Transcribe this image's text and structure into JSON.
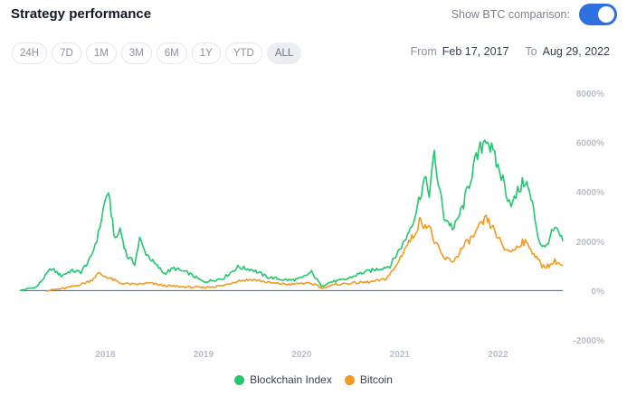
{
  "header": {
    "title": "Strategy performance",
    "comparison_label": "Show BTC comparison:",
    "comparison_enabled": true
  },
  "ranges": [
    {
      "label": "24H",
      "active": false
    },
    {
      "label": "7D",
      "active": false
    },
    {
      "label": "1M",
      "active": false
    },
    {
      "label": "3M",
      "active": false
    },
    {
      "label": "6M",
      "active": false
    },
    {
      "label": "1Y",
      "active": false
    },
    {
      "label": "YTD",
      "active": false
    },
    {
      "label": "ALL",
      "active": true
    }
  ],
  "date_range": {
    "from_label": "From",
    "from_value": "Feb 17, 2017",
    "to_label": "To",
    "to_value": "Aug 29, 2022"
  },
  "colors": {
    "index": "#22c76e",
    "bitcoin": "#f39a1e",
    "zero_line": "#2e6aa6",
    "toggle": "#2f6fdf"
  },
  "chart_data": {
    "type": "line",
    "title": "Strategy performance",
    "xlabel": "",
    "ylabel": "",
    "xlim": [
      2017.13,
      2022.66
    ],
    "ylim": [
      -2000,
      8000
    ],
    "y_ticks": [
      {
        "value": 8000,
        "label": "8000%"
      },
      {
        "value": 6000,
        "label": "6000%"
      },
      {
        "value": 4000,
        "label": "4000%"
      },
      {
        "value": 2000,
        "label": "2000%"
      },
      {
        "value": 0,
        "label": "0%"
      },
      {
        "value": -2000,
        "label": "-2000%"
      }
    ],
    "x_ticks": [
      {
        "value": 2018.0,
        "label": "2018"
      },
      {
        "value": 2019.0,
        "label": "2019"
      },
      {
        "value": 2020.0,
        "label": "2020"
      },
      {
        "value": 2021.0,
        "label": "2021"
      },
      {
        "value": 2022.0,
        "label": "2022"
      }
    ],
    "legend_position": "bottom",
    "series": [
      {
        "name": "Blockchain Index",
        "points": [
          [
            2017.13,
            0
          ],
          [
            2017.3,
            150
          ],
          [
            2017.45,
            900
          ],
          [
            2017.55,
            600
          ],
          [
            2017.65,
            800
          ],
          [
            2017.75,
            750
          ],
          [
            2017.85,
            1300
          ],
          [
            2017.93,
            2300
          ],
          [
            2017.98,
            3300
          ],
          [
            2018.02,
            4000
          ],
          [
            2018.06,
            3200
          ],
          [
            2018.1,
            2000
          ],
          [
            2018.15,
            2500
          ],
          [
            2018.22,
            1400
          ],
          [
            2018.3,
            1100
          ],
          [
            2018.35,
            2100
          ],
          [
            2018.4,
            1600
          ],
          [
            2018.5,
            1100
          ],
          [
            2018.6,
            700
          ],
          [
            2018.7,
            900
          ],
          [
            2018.85,
            700
          ],
          [
            2019.0,
            350
          ],
          [
            2019.2,
            500
          ],
          [
            2019.35,
            950
          ],
          [
            2019.5,
            850
          ],
          [
            2019.65,
            550
          ],
          [
            2019.8,
            450
          ],
          [
            2019.9,
            420
          ],
          [
            2020.0,
            500
          ],
          [
            2020.1,
            750
          ],
          [
            2020.2,
            200
          ],
          [
            2020.3,
            350
          ],
          [
            2020.45,
            450
          ],
          [
            2020.6,
            700
          ],
          [
            2020.75,
            850
          ],
          [
            2020.9,
            1000
          ],
          [
            2021.0,
            1700
          ],
          [
            2021.05,
            2000
          ],
          [
            2021.15,
            3000
          ],
          [
            2021.25,
            4500
          ],
          [
            2021.3,
            4000
          ],
          [
            2021.35,
            5400
          ],
          [
            2021.45,
            3000
          ],
          [
            2021.55,
            2500
          ],
          [
            2021.65,
            3500
          ],
          [
            2021.75,
            5000
          ],
          [
            2021.82,
            5700
          ],
          [
            2021.88,
            6300
          ],
          [
            2021.95,
            5500
          ],
          [
            2022.0,
            5000
          ],
          [
            2022.05,
            4500
          ],
          [
            2022.1,
            3800
          ],
          [
            2022.15,
            3500
          ],
          [
            2022.2,
            4000
          ],
          [
            2022.28,
            4500
          ],
          [
            2022.35,
            3500
          ],
          [
            2022.42,
            2000
          ],
          [
            2022.48,
            1700
          ],
          [
            2022.53,
            2200
          ],
          [
            2022.58,
            2500
          ],
          [
            2022.62,
            2300
          ],
          [
            2022.66,
            2000
          ]
        ]
      },
      {
        "name": "Bitcoin",
        "points": [
          [
            2017.4,
            0
          ],
          [
            2017.6,
            100
          ],
          [
            2017.75,
            250
          ],
          [
            2017.85,
            400
          ],
          [
            2017.93,
            700
          ],
          [
            2017.98,
            600
          ],
          [
            2018.05,
            500
          ],
          [
            2018.15,
            300
          ],
          [
            2018.3,
            250
          ],
          [
            2018.45,
            300
          ],
          [
            2018.6,
            200
          ],
          [
            2018.8,
            150
          ],
          [
            2019.0,
            120
          ],
          [
            2019.2,
            200
          ],
          [
            2019.35,
            400
          ],
          [
            2019.5,
            450
          ],
          [
            2019.7,
            300
          ],
          [
            2019.9,
            250
          ],
          [
            2020.0,
            300
          ],
          [
            2020.15,
            250
          ],
          [
            2020.2,
            100
          ],
          [
            2020.35,
            250
          ],
          [
            2020.5,
            300
          ],
          [
            2020.7,
            350
          ],
          [
            2020.85,
            450
          ],
          [
            2020.95,
            900
          ],
          [
            2021.05,
            1700
          ],
          [
            2021.15,
            2300
          ],
          [
            2021.2,
            2800
          ],
          [
            2021.3,
            2600
          ],
          [
            2021.35,
            2000
          ],
          [
            2021.45,
            1300
          ],
          [
            2021.55,
            1200
          ],
          [
            2021.65,
            1800
          ],
          [
            2021.75,
            2200
          ],
          [
            2021.82,
            2600
          ],
          [
            2021.88,
            2900
          ],
          [
            2021.95,
            2500
          ],
          [
            2022.0,
            2200
          ],
          [
            2022.05,
            1700
          ],
          [
            2022.15,
            1600
          ],
          [
            2022.25,
            2000
          ],
          [
            2022.32,
            1800
          ],
          [
            2022.38,
            1400
          ],
          [
            2022.45,
            1000
          ],
          [
            2022.52,
            1000
          ],
          [
            2022.58,
            1200
          ],
          [
            2022.62,
            1100
          ],
          [
            2022.66,
            1000
          ]
        ]
      }
    ]
  }
}
